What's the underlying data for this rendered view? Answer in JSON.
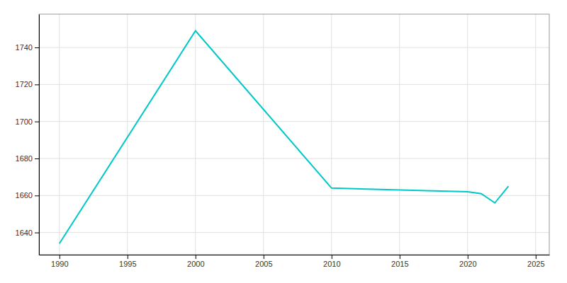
{
  "chart_data": {
    "type": "line",
    "x": [
      1990,
      2000,
      2010,
      2015,
      2020,
      2021,
      2022,
      2023
    ],
    "values": [
      1634,
      1749,
      1664,
      1663,
      1662,
      1661,
      1656,
      1665
    ],
    "color": "#00C8C8",
    "xlim": [
      1988.5,
      2026
    ],
    "ylim": [
      1628,
      1758
    ],
    "xticks": [
      1990,
      1995,
      2000,
      2005,
      2010,
      2015,
      2020,
      2025
    ],
    "yticks": [
      1640,
      1660,
      1680,
      1700,
      1720,
      1740
    ],
    "grid": true
  }
}
